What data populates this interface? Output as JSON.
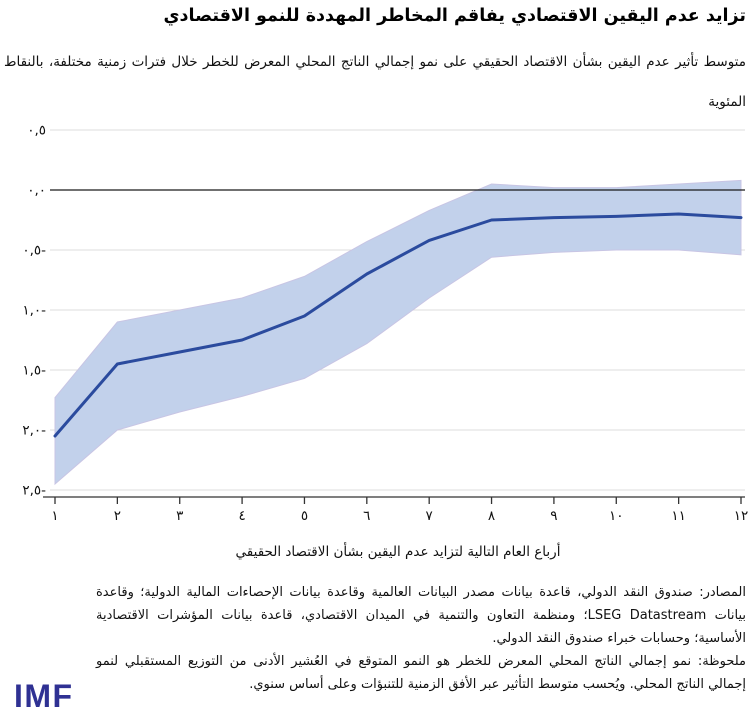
{
  "header": {
    "title": "تزايد عدم اليقين الاقتصادي يفاقم المخاطر المهددة للنمو الاقتصادي",
    "subtitle": "متوسط تأثير عدم اليقين بشأن الاقتصاد الحقيقي على نمو إجمالي الناتج المحلي المعرض للخطر خلال فترات زمنية مختلفة، بالنقاط المئوية"
  },
  "chart_data": {
    "type": "line",
    "x": [
      1,
      2,
      3,
      4,
      5,
      6,
      7,
      8,
      9,
      10,
      11,
      12
    ],
    "x_tick_labels": [
      "١",
      "٢",
      "٣",
      "٤",
      "٥",
      "٦",
      "٧",
      "٨",
      "٩",
      "١٠",
      "١١",
      "١٢"
    ],
    "xlabel": "أرباع العام التالية لتزايد عدم اليقين بشأن الاقتصاد الحقيقي",
    "ylabel": "",
    "y_ticks": [
      0.5,
      0,
      -0.5,
      -1,
      -1.5,
      -2,
      -2.5
    ],
    "y_tick_labels": [
      "٠,٥",
      "٠,٠",
      "٠,٥-",
      "١,٠-",
      "١,٥-",
      "٢,٠-",
      "٢,٥-"
    ],
    "ylim": [
      -2.56,
      0.5
    ],
    "grid": "horizontal",
    "zero_line": true,
    "legend": "none",
    "series": [
      {
        "kind": "line",
        "values": [
          -2.05,
          -1.45,
          -1.35,
          -1.25,
          -1.05,
          -0.7,
          -0.42,
          -0.25,
          -0.23,
          -0.22,
          -0.2,
          -0.23
        ]
      },
      {
        "kind": "band",
        "upper": [
          -1.73,
          -1.1,
          -1.0,
          -0.9,
          -0.72,
          -0.43,
          -0.17,
          0.05,
          0.02,
          0.02,
          0.05,
          0.08
        ],
        "lower": [
          -2.45,
          -2.0,
          -1.85,
          -1.72,
          -1.57,
          -1.28,
          -0.9,
          -0.56,
          -0.52,
          -0.5,
          -0.5,
          -0.54
        ]
      }
    ]
  },
  "colors": {
    "line": "#2b4b9e",
    "band": "#c2d1eb",
    "band_edge": "#c8c5e4",
    "grid": "#dcdcdc",
    "zero_line": "#1a1a1a",
    "axis": "#333333",
    "logo": "#2f3193"
  },
  "footer": {
    "sources": "المصادر: صندوق النقد الدولي، قاعدة بيانات مصدر البيانات العالمية وقاعدة بيانات الإحصاءات المالية الدولية؛ وقاعدة بيانات LSEG Datastream؛ ومنظمة التعاون والتنمية في الميدان الاقتصادي، قاعدة بيانات المؤشرات الاقتصادية الأساسية؛ وحسابات خبراء صندوق النقد الدولي.",
    "note": "ملحوظة: نمو إجمالي الناتج المحلي المعرض للخطر هو النمو المتوقع في العُشير الأدنى من التوزيع المستقبلي لنمو إجمالي الناتج المحلي. ويُحسب متوسط التأثير عبر الأفق الزمنية للتنبؤات وعلى أساس سنوي.",
    "logo": "IMF"
  }
}
